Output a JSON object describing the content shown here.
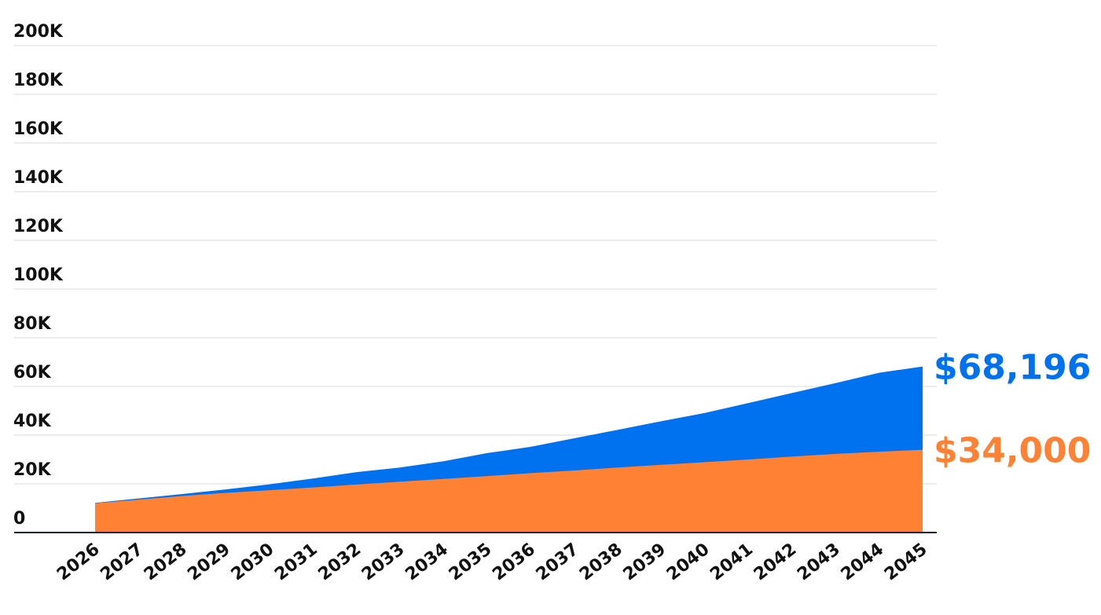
{
  "chart_data": {
    "type": "area",
    "x": [
      2026,
      2027,
      2028,
      2029,
      2030,
      2031,
      2032,
      2033,
      2034,
      2035,
      2036,
      2037,
      2038,
      2039,
      2040,
      2041,
      2042,
      2043,
      2044,
      2045
    ],
    "x_tick_labels": [
      "2026",
      "2027",
      "2028",
      "2029",
      "2030",
      "2031",
      "2032",
      "2033",
      "2034",
      "2035",
      "2036",
      "2037",
      "2038",
      "2039",
      "2040",
      "2041",
      "2042",
      "2043",
      "2044",
      "2045"
    ],
    "y_tick_labels": [
      "0",
      "20K",
      "40K",
      "60K",
      "80K",
      "100K",
      "120K",
      "140K",
      "160K",
      "180K",
      "200K"
    ],
    "ylim": [
      0,
      200000
    ],
    "grid": true,
    "series": [
      {
        "color": "#0072EF",
        "end_label": "$68,196",
        "values": [
          12200,
          14000,
          15800,
          17700,
          19800,
          22200,
          24800,
          26700,
          29300,
          32600,
          35200,
          38700,
          42200,
          45700,
          49100,
          53200,
          57300,
          61400,
          65600,
          68196
        ]
      },
      {
        "color": "#FF8133",
        "end_label": "$34,000",
        "values": [
          12000,
          13500,
          15000,
          16300,
          17400,
          18500,
          19700,
          20900,
          22000,
          23200,
          24400,
          25500,
          26700,
          27800,
          28900,
          30000,
          31200,
          32300,
          33200,
          34000
        ]
      }
    ],
    "end_labels": [
      "$68,196",
      "$34,000"
    ]
  }
}
